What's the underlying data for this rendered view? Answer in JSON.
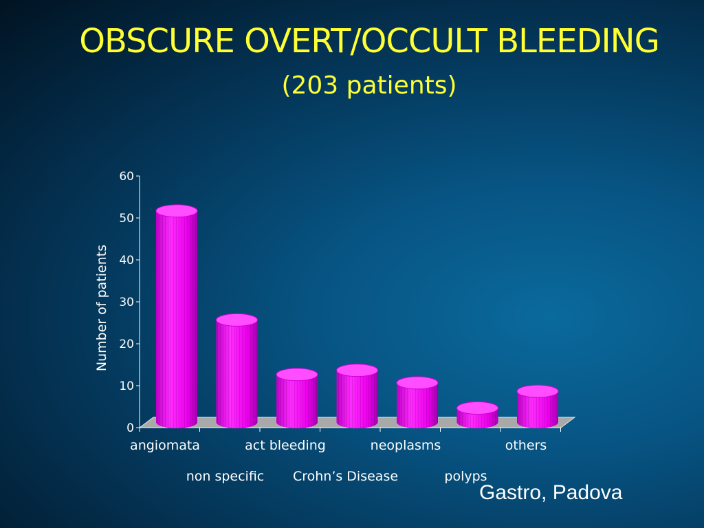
{
  "slide": {
    "title": "OBSCURE OVERT/OCCULT BLEEDING",
    "subtitle": "(203 patients)",
    "credit": "Gastro, Padova"
  },
  "colors": {
    "title": "#ffff33",
    "bar": "#ff00ff",
    "bar_top": "#ff4dff",
    "axis": "#ffffff",
    "floor": "#a9a9a9"
  },
  "chart_data": {
    "type": "bar",
    "style": "3d-cylinder",
    "categories": [
      "angiomata",
      "non specific",
      "act bleeding",
      "Crohn’s Disease",
      "neoplasms",
      "polyps",
      "others"
    ],
    "values": [
      52,
      26,
      13,
      14,
      11,
      5,
      9
    ],
    "ylabel": "Number of patients",
    "xlabel": "",
    "ylim": [
      0,
      60
    ],
    "yticks": [
      "0",
      "10",
      "20",
      "30",
      "40",
      "50",
      "60"
    ],
    "grid": false,
    "legend": "none"
  }
}
